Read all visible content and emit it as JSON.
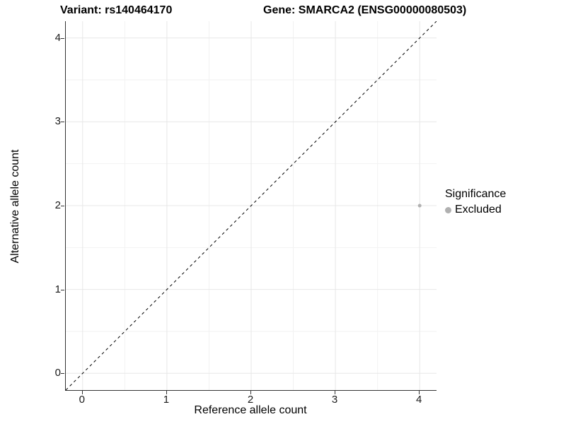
{
  "titles": {
    "left": "Variant: rs140464170",
    "right": "Gene: SMARCA2 (ENSG00000080503)"
  },
  "legend": {
    "title": "Significance",
    "items": [
      {
        "label": "Excluded",
        "color": "#b0b0b0"
      }
    ]
  },
  "chart_data": {
    "type": "scatter",
    "title_left": "Variant: rs140464170",
    "title_right": "Gene: SMARCA2 (ENSG00000080503)",
    "xlabel": "Reference allele count",
    "ylabel": "Alternative allele count",
    "xlim": [
      -0.2,
      4.2
    ],
    "ylim": [
      -0.2,
      4.2
    ],
    "x_ticks": [
      0,
      1,
      2,
      3,
      4
    ],
    "y_ticks": [
      0,
      1,
      2,
      3,
      4
    ],
    "x_tick_labels": [
      "0",
      "1",
      "2",
      "3",
      "4"
    ],
    "y_tick_labels": [
      "0",
      "1",
      "2",
      "3",
      "4"
    ],
    "grid": "on",
    "minor_grid": "on",
    "legend_position": "right",
    "legend_title": "Significance",
    "series": [
      {
        "name": "Excluded",
        "color": "#b0b0b0",
        "points": [
          {
            "x": 4,
            "y": 2
          }
        ]
      }
    ],
    "reference_line": {
      "kind": "identity y=x",
      "style": "dashed",
      "color": "#000000",
      "from": [
        -0.2,
        -0.2
      ],
      "to": [
        4.2,
        4.2
      ]
    }
  },
  "colors": {
    "background": "#ffffff",
    "axis_line": "#333333",
    "major_gridline": "#e7e7e7",
    "minor_gridline": "#f2f2f2",
    "tick_label": "#1a1a1a",
    "point": "#b0b0b0"
  }
}
